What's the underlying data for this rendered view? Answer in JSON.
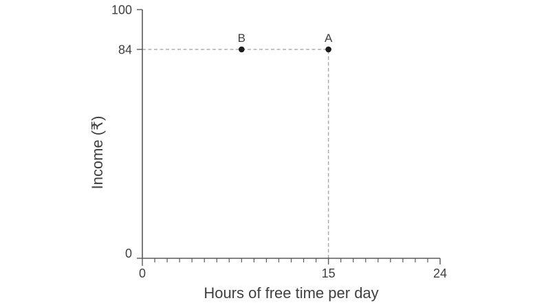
{
  "figure": {
    "background": "#ffffff"
  },
  "chart_data": {
    "type": "scatter",
    "title": "",
    "xlabel": "Hours of free time per day",
    "ylabel": "Income (₹)",
    "xlim": [
      0,
      24
    ],
    "ylim": [
      0,
      100
    ],
    "x_ticks_labeled": [
      0,
      15,
      24
    ],
    "x_minor_tick_step": 1,
    "y_ticks_labeled": [
      0,
      84,
      100
    ],
    "grid": false,
    "legend": "none",
    "points": [
      {
        "label": "B",
        "x": 8,
        "y": 84
      },
      {
        "label": "A",
        "x": 15,
        "y": 84
      }
    ],
    "guides": [
      {
        "type": "dashed-horizontal",
        "from_x": 0,
        "to_x": 15,
        "y": 84
      },
      {
        "type": "dashed-vertical",
        "x": 15,
        "from_y": 0,
        "to_y": 84
      }
    ],
    "colors": {
      "axis": "#58595b",
      "text": "#3f3f3f",
      "point": "#1c1c1c",
      "dash": "#a3a7aa"
    }
  }
}
